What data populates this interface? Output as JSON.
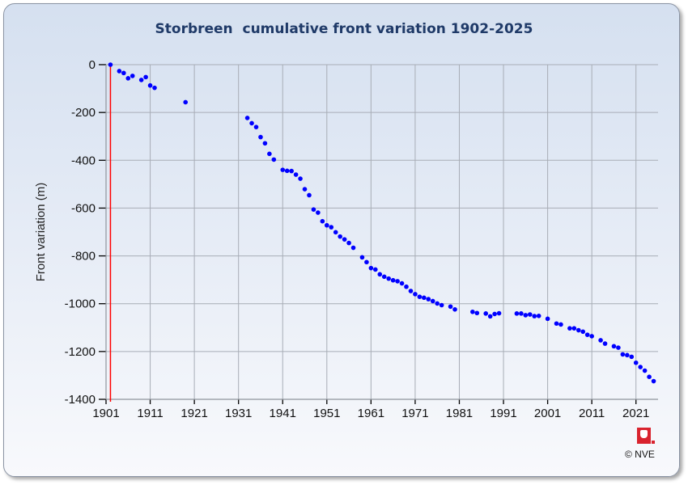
{
  "chart_data": {
    "type": "scatter",
    "title": "Storbreen  cumulative front variation 1902-2025",
    "xlabel": "",
    "ylabel": "Front variation (m)",
    "xlim": [
      1901,
      2026
    ],
    "ylim": [
      -1400,
      0
    ],
    "xticks": [
      1901,
      1911,
      1921,
      1931,
      1941,
      1951,
      1961,
      1971,
      1981,
      1991,
      2001,
      2011,
      2021
    ],
    "yticks": [
      0,
      -200,
      -400,
      -600,
      -800,
      -1000,
      -1200,
      -1400
    ],
    "grid": true,
    "reference_line_year": 1902,
    "colors": {
      "points": "#0000ff",
      "reference_line": "#ff0000",
      "title": "#1f3a68"
    },
    "series": [
      {
        "name": "Cumulative front variation",
        "x": [
          1902,
          1904,
          1905,
          1906,
          1907,
          1909,
          1910,
          1911,
          1912,
          1919,
          1933,
          1934,
          1935,
          1936,
          1937,
          1938,
          1939,
          1941,
          1942,
          1943,
          1944,
          1945,
          1946,
          1947,
          1948,
          1949,
          1950,
          1951,
          1952,
          1953,
          1954,
          1955,
          1956,
          1957,
          1959,
          1960,
          1961,
          1962,
          1963,
          1964,
          1965,
          1966,
          1967,
          1968,
          1969,
          1970,
          1971,
          1972,
          1973,
          1974,
          1975,
          1976,
          1977,
          1979,
          1980,
          1984,
          1985,
          1987,
          1988,
          1989,
          1990,
          1994,
          1995,
          1996,
          1997,
          1998,
          1999,
          2001,
          2003,
          2004,
          2006,
          2007,
          2008,
          2009,
          2010,
          2011,
          2013,
          2014,
          2016,
          2017,
          2018,
          2019,
          2020,
          2021,
          2022,
          2023,
          2024,
          2025
        ],
        "y": [
          0,
          -27,
          -35,
          -57,
          -47,
          -64,
          -52,
          -87,
          -97,
          -157,
          -223,
          -245,
          -261,
          -303,
          -329,
          -373,
          -397,
          -440,
          -444,
          -445,
          -460,
          -477,
          -521,
          -546,
          -606,
          -619,
          -655,
          -672,
          -680,
          -701,
          -719,
          -731,
          -746,
          -766,
          -806,
          -826,
          -851,
          -857,
          -877,
          -887,
          -895,
          -902,
          -906,
          -915,
          -929,
          -947,
          -960,
          -971,
          -975,
          -981,
          -989,
          -999,
          -1006,
          -1012,
          -1024,
          -1034,
          -1039,
          -1041,
          -1053,
          -1043,
          -1040,
          -1041,
          -1041,
          -1048,
          -1045,
          -1052,
          -1051,
          -1063,
          -1083,
          -1087,
          -1103,
          -1103,
          -1111,
          -1117,
          -1130,
          -1136,
          -1153,
          -1167,
          -1178,
          -1184,
          -1212,
          -1215,
          -1222,
          -1247,
          -1265,
          -1280,
          -1306,
          -1324
        ]
      }
    ]
  },
  "footer": {
    "copyright": "© NVE",
    "logo_text": "NVE"
  }
}
